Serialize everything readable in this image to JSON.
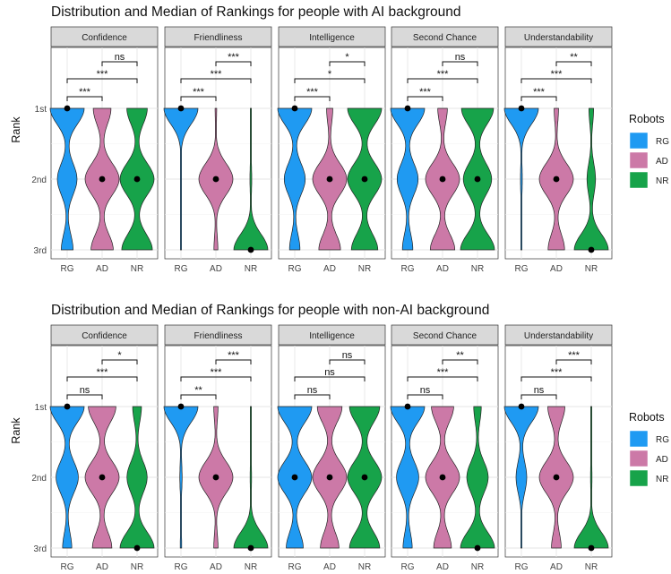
{
  "chart_data": [
    {
      "type": "violin",
      "title": "Distribution and Median of Rankings for people with AI background",
      "ylabel": "Rank",
      "y_ticks": [
        "1st",
        "2nd",
        "3rd"
      ],
      "x_categories": [
        "RG",
        "AD",
        "NR"
      ],
      "legend": {
        "title": "Robots",
        "position": "right",
        "items": [
          {
            "label": "RG",
            "color": "#1f9af2"
          },
          {
            "label": "AD",
            "color": "#cc79a7"
          },
          {
            "label": "NR",
            "color": "#17a34a"
          }
        ]
      },
      "facets": [
        {
          "name": "Confidence",
          "series": [
            {
              "name": "RG",
              "distribution": [
                0.52,
                0.3,
                0.18
              ],
              "median": "1st"
            },
            {
              "name": "AD",
              "distribution": [
                0.24,
                0.46,
                0.3
              ],
              "median": "2nd"
            },
            {
              "name": "NR",
              "distribution": [
                0.24,
                0.4,
                0.36
              ],
              "median": "2nd"
            }
          ],
          "significance": [
            {
              "pair": [
                "RG",
                "AD"
              ],
              "label": "***"
            },
            {
              "pair": [
                "RG",
                "NR"
              ],
              "label": "***"
            },
            {
              "pair": [
                "AD",
                "NR"
              ],
              "label": "ns"
            }
          ]
        },
        {
          "name": "Friendliness",
          "series": [
            {
              "name": "RG",
              "distribution": [
                0.96,
                0.02,
                0.02
              ],
              "median": "1st"
            },
            {
              "name": "AD",
              "distribution": [
                0.04,
                0.86,
                0.1
              ],
              "median": "2nd"
            },
            {
              "name": "NR",
              "distribution": [
                0.01,
                0.05,
                0.94
              ],
              "median": "3rd"
            }
          ],
          "significance": [
            {
              "pair": [
                "RG",
                "AD"
              ],
              "label": "***"
            },
            {
              "pair": [
                "RG",
                "NR"
              ],
              "label": "***"
            },
            {
              "pair": [
                "AD",
                "NR"
              ],
              "label": "***"
            }
          ]
        },
        {
          "name": "Intelligence",
          "series": [
            {
              "name": "RG",
              "distribution": [
                0.52,
                0.32,
                0.16
              ],
              "median": "1st"
            },
            {
              "name": "AD",
              "distribution": [
                0.1,
                0.55,
                0.35
              ],
              "median": "2nd"
            },
            {
              "name": "NR",
              "distribution": [
                0.36,
                0.36,
                0.28
              ],
              "median": "2nd"
            }
          ],
          "significance": [
            {
              "pair": [
                "RG",
                "AD"
              ],
              "label": "***"
            },
            {
              "pair": [
                "RG",
                "NR"
              ],
              "label": "*"
            },
            {
              "pair": [
                "AD",
                "NR"
              ],
              "label": "*"
            }
          ]
        },
        {
          "name": "Second Chance",
          "series": [
            {
              "name": "RG",
              "distribution": [
                0.52,
                0.32,
                0.16
              ],
              "median": "1st"
            },
            {
              "name": "AD",
              "distribution": [
                0.14,
                0.5,
                0.36
              ],
              "median": "2nd"
            },
            {
              "name": "NR",
              "distribution": [
                0.34,
                0.3,
                0.36
              ],
              "median": "2nd"
            }
          ],
          "significance": [
            {
              "pair": [
                "RG",
                "AD"
              ],
              "label": "***"
            },
            {
              "pair": [
                "RG",
                "NR"
              ],
              "label": "***"
            },
            {
              "pair": [
                "AD",
                "NR"
              ],
              "label": "ns"
            }
          ]
        },
        {
          "name": "Understandability",
          "series": [
            {
              "name": "RG",
              "distribution": [
                0.93,
                0.05,
                0.02
              ],
              "median": "1st"
            },
            {
              "name": "AD",
              "distribution": [
                0.08,
                0.62,
                0.3
              ],
              "median": "2nd"
            },
            {
              "name": "NR",
              "distribution": [
                0.1,
                0.18,
                0.72
              ],
              "median": "3rd"
            }
          ],
          "significance": [
            {
              "pair": [
                "RG",
                "AD"
              ],
              "label": "***"
            },
            {
              "pair": [
                "RG",
                "NR"
              ],
              "label": "***"
            },
            {
              "pair": [
                "AD",
                "NR"
              ],
              "label": "**"
            }
          ]
        }
      ]
    },
    {
      "type": "violin",
      "title": "Distribution and Median of Rankings for people with non-AI background",
      "ylabel": "Rank",
      "y_ticks": [
        "1st",
        "2nd",
        "3rd"
      ],
      "x_categories": [
        "RG",
        "AD",
        "NR"
      ],
      "legend": {
        "title": "Robots",
        "position": "right",
        "items": [
          {
            "label": "RG",
            "color": "#1f9af2"
          },
          {
            "label": "AD",
            "color": "#cc79a7"
          },
          {
            "label": "NR",
            "color": "#17a34a"
          }
        ]
      },
      "facets": [
        {
          "name": "Confidence",
          "series": [
            {
              "name": "RG",
              "distribution": [
                0.52,
                0.34,
                0.14
              ],
              "median": "1st"
            },
            {
              "name": "AD",
              "distribution": [
                0.34,
                0.42,
                0.24
              ],
              "median": "2nd"
            },
            {
              "name": "NR",
              "distribution": [
                0.14,
                0.32,
                0.54
              ],
              "median": "3rd"
            }
          ],
          "significance": [
            {
              "pair": [
                "RG",
                "AD"
              ],
              "label": "ns"
            },
            {
              "pair": [
                "RG",
                "NR"
              ],
              "label": "***"
            },
            {
              "pair": [
                "AD",
                "NR"
              ],
              "label": "*"
            }
          ]
        },
        {
          "name": "Friendliness",
          "series": [
            {
              "name": "RG",
              "distribution": [
                0.9,
                0.06,
                0.04
              ],
              "median": "1st"
            },
            {
              "name": "AD",
              "distribution": [
                0.1,
                0.8,
                0.1
              ],
              "median": "2nd"
            },
            {
              "name": "NR",
              "distribution": [
                0.01,
                0.04,
                0.95
              ],
              "median": "3rd"
            }
          ],
          "significance": [
            {
              "pair": [
                "RG",
                "AD"
              ],
              "label": "**"
            },
            {
              "pair": [
                "RG",
                "NR"
              ],
              "label": "***"
            },
            {
              "pair": [
                "AD",
                "NR"
              ],
              "label": "***"
            }
          ]
        },
        {
          "name": "Intelligence",
          "series": [
            {
              "name": "RG",
              "distribution": [
                0.4,
                0.4,
                0.2
              ],
              "median": "2nd"
            },
            {
              "name": "AD",
              "distribution": [
                0.32,
                0.44,
                0.24
              ],
              "median": "2nd"
            },
            {
              "name": "NR",
              "distribution": [
                0.32,
                0.36,
                0.32
              ],
              "median": "2nd"
            }
          ],
          "significance": [
            {
              "pair": [
                "RG",
                "AD"
              ],
              "label": "ns"
            },
            {
              "pair": [
                "RG",
                "NR"
              ],
              "label": "ns"
            },
            {
              "pair": [
                "AD",
                "NR"
              ],
              "label": "ns"
            }
          ]
        },
        {
          "name": "Second Chance",
          "series": [
            {
              "name": "RG",
              "distribution": [
                0.52,
                0.34,
                0.14
              ],
              "median": "1st"
            },
            {
              "name": "AD",
              "distribution": [
                0.3,
                0.46,
                0.24
              ],
              "median": "2nd"
            },
            {
              "name": "NR",
              "distribution": [
                0.12,
                0.34,
                0.54
              ],
              "median": "3rd"
            }
          ],
          "significance": [
            {
              "pair": [
                "RG",
                "AD"
              ],
              "label": "ns"
            },
            {
              "pair": [
                "RG",
                "NR"
              ],
              "label": "***"
            },
            {
              "pair": [
                "AD",
                "NR"
              ],
              "label": "**"
            }
          ]
        },
        {
          "name": "Understandability",
          "series": [
            {
              "name": "RG",
              "distribution": [
                0.76,
                0.24,
                0.0
              ],
              "median": "1st"
            },
            {
              "name": "AD",
              "distribution": [
                0.28,
                0.56,
                0.16
              ],
              "median": "2nd"
            },
            {
              "name": "NR",
              "distribution": [
                0.0,
                0.04,
                0.96
              ],
              "median": "3rd"
            }
          ],
          "significance": [
            {
              "pair": [
                "RG",
                "AD"
              ],
              "label": "ns"
            },
            {
              "pair": [
                "RG",
                "NR"
              ],
              "label": "***"
            },
            {
              "pair": [
                "AD",
                "NR"
              ],
              "label": "***"
            }
          ]
        }
      ]
    }
  ]
}
